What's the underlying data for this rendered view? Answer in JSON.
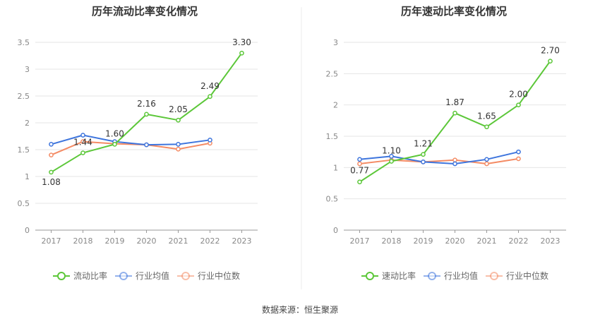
{
  "source": "数据来源：恒生聚源",
  "chart_data": [
    {
      "type": "line",
      "title": "历年流动比率变化情况",
      "x": [
        "2017",
        "2018",
        "2019",
        "2020",
        "2021",
        "2022",
        "2023"
      ],
      "ylim": [
        0,
        3.5
      ],
      "yticks": [
        "0",
        "0.5",
        "1",
        "1.5",
        "2",
        "2.5",
        "3",
        "3.5"
      ],
      "grid": true,
      "legend_position": "bottom",
      "series": [
        {
          "name": "流动比率",
          "color": "#5cc739",
          "values": [
            1.08,
            1.44,
            1.6,
            2.16,
            2.05,
            2.49,
            3.3
          ],
          "labels": [
            "1.08",
            "1.44",
            "1.60",
            "2.16",
            "2.05",
            "2.49",
            "3.30"
          ]
        },
        {
          "name": "行业均值",
          "color": "#3e75dd",
          "values": [
            1.6,
            1.77,
            1.65,
            1.59,
            1.6,
            1.68,
            null
          ]
        },
        {
          "name": "行业中位数",
          "color": "#f48b64",
          "values": [
            1.4,
            1.65,
            1.61,
            1.59,
            1.51,
            1.62,
            null
          ]
        }
      ]
    },
    {
      "type": "line",
      "title": "历年速动比率变化情况",
      "x": [
        "2017",
        "2018",
        "2019",
        "2020",
        "2021",
        "2022",
        "2023"
      ],
      "ylim": [
        0,
        3
      ],
      "yticks": [
        "0",
        "0.5",
        "1",
        "1.5",
        "2",
        "2.5",
        "3"
      ],
      "grid": true,
      "legend_position": "bottom",
      "series": [
        {
          "name": "速动比率",
          "color": "#5cc739",
          "values": [
            0.77,
            1.1,
            1.21,
            1.87,
            1.65,
            2.0,
            2.7
          ],
          "labels": [
            "0.77",
            "1.10",
            "1.21",
            "1.87",
            "1.65",
            "2.00",
            "2.70"
          ]
        },
        {
          "name": "行业均值",
          "color": "#3e75dd",
          "values": [
            1.13,
            1.18,
            1.09,
            1.06,
            1.13,
            1.25,
            null
          ]
        },
        {
          "name": "行业中位数",
          "color": "#f48b64",
          "values": [
            1.06,
            1.12,
            1.09,
            1.12,
            1.06,
            1.14,
            null
          ]
        }
      ]
    }
  ]
}
